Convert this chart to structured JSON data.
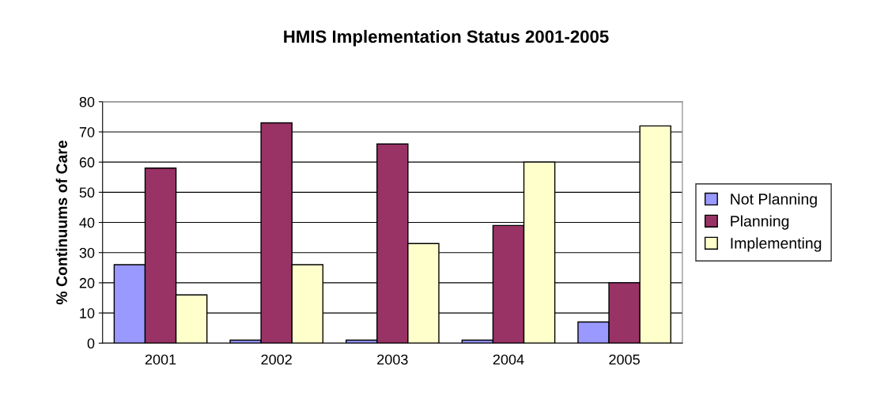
{
  "chart_data": {
    "type": "bar",
    "title": "HMIS Implementation Status 2001-2005",
    "ylabel": "% Continuums of Care",
    "categories": [
      "2001",
      "2002",
      "2003",
      "2004",
      "2005"
    ],
    "series": [
      {
        "name": "Not Planning",
        "color": "#9999ff",
        "values": [
          26,
          1,
          1,
          1,
          7
        ]
      },
      {
        "name": "Planning",
        "color": "#993366",
        "values": [
          58,
          73,
          66,
          39,
          20
        ]
      },
      {
        "name": "Implementing",
        "color": "#ffffcc",
        "values": [
          16,
          26,
          33,
          60,
          72
        ]
      }
    ],
    "ylim": [
      0,
      80
    ],
    "yticks": [
      0,
      10,
      20,
      30,
      40,
      50,
      60,
      70,
      80
    ],
    "grid": "y",
    "legend": "right"
  }
}
